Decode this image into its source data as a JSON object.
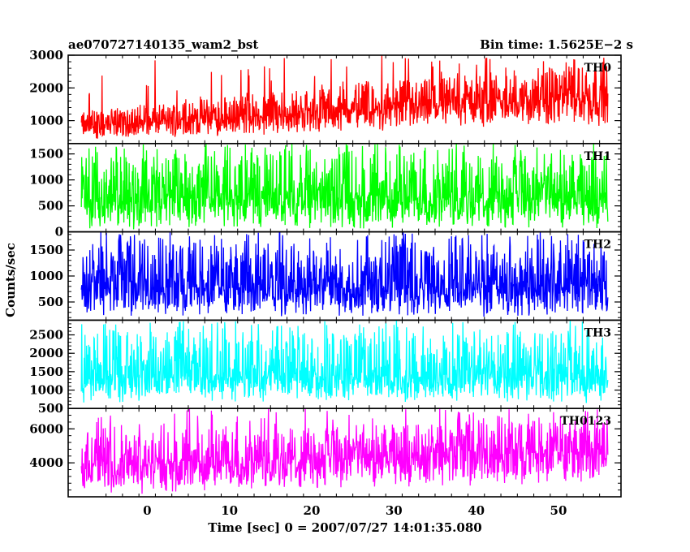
{
  "chart_data": {
    "type": "line",
    "title_left": "ae070727140135_wam2_bst",
    "title_right": "Bin time: 1.5625E−2 s",
    "xlabel": "Time [sec] 0 = 2007/07/27 14:01:35.080",
    "ylabel": "Counts/sec",
    "xlim": [
      -9.6,
      57.6
    ],
    "x_data_range": [
      -8.0,
      56.0
    ],
    "x_ticks": [
      0,
      10,
      20,
      30,
      40,
      50
    ],
    "bin_time_s": 0.015625,
    "grid": false,
    "panels": [
      {
        "name": "TH0",
        "color": "#ff0000",
        "ylim": [
          300,
          3000
        ],
        "y_ticks": [
          1000,
          2000,
          3000
        ],
        "trend": {
          "start": 850,
          "end": 1750
        },
        "band_low": [
          420,
          820
        ],
        "band_high": [
          1350,
          2800
        ]
      },
      {
        "name": "TH1",
        "color": "#00ff00",
        "ylim": [
          0,
          1700
        ],
        "y_ticks": [
          0,
          500,
          1000,
          1500
        ],
        "trend": {
          "start": 640,
          "end": 640
        },
        "band_low": [
          30,
          30
        ],
        "band_high": [
          1500,
          1500
        ]
      },
      {
        "name": "TH2",
        "color": "#0000ff",
        "ylim": [
          150,
          1850
        ],
        "y_ticks": [
          500,
          1000,
          1500
        ],
        "trend": {
          "start": 780,
          "end": 780
        },
        "band_low": [
          200,
          200
        ],
        "band_high": [
          1650,
          1650
        ]
      },
      {
        "name": "TH3",
        "color": "#00ffff",
        "ylim": [
          500,
          2900
        ],
        "y_ticks": [
          500,
          1000,
          1500,
          2000,
          2500
        ],
        "trend": {
          "start": 1350,
          "end": 1350
        },
        "band_low": [
          650,
          650
        ],
        "band_high": [
          2600,
          2600
        ]
      },
      {
        "name": "TH0123",
        "color": "#ff00ff",
        "ylim": [
          2000,
          7200
        ],
        "y_ticks": [
          4000,
          6000
        ],
        "trend": {
          "start": 3800,
          "end": 4700
        },
        "band_low": [
          2100,
          2700
        ],
        "band_high": [
          5800,
          6600
        ]
      }
    ]
  }
}
